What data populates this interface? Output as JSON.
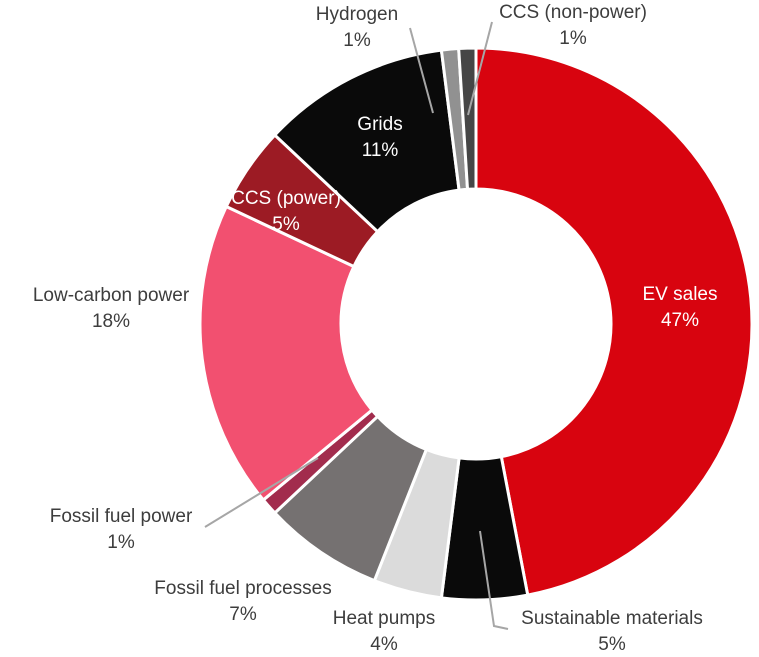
{
  "chart_data": {
    "type": "pie",
    "subtype": "donut",
    "title": "",
    "start_angle_deg": 0,
    "direction": "clockwise",
    "inner_radius_ratio": 0.49,
    "border_color": "#FFFFFF",
    "leader_line_color": "#A6A6A6",
    "background_color": "#FFFFFF",
    "outside_label_color": "#3D3D3D",
    "inside_label_color": "#FFFFFF",
    "slices": [
      {
        "id": "ev-sales",
        "label": "EV sales",
        "value": 47,
        "pct_label": "47%",
        "color": "#D8040F",
        "label_placement": "inside"
      },
      {
        "id": "sustainable-materials",
        "label": "Sustainable materials",
        "value": 5,
        "pct_label": "5%",
        "color": "#0A0A0A",
        "label_placement": "outside"
      },
      {
        "id": "heat-pumps",
        "label": "Heat pumps",
        "value": 4,
        "pct_label": "4%",
        "color": "#DBDBDB",
        "label_placement": "outside"
      },
      {
        "id": "fossil-fuel-processes",
        "label": "Fossil fuel processes",
        "value": 7,
        "pct_label": "7%",
        "color": "#757171",
        "label_placement": "outside"
      },
      {
        "id": "fossil-fuel-power",
        "label": "Fossil fuel power",
        "value": 1,
        "pct_label": "1%",
        "color": "#A22C4D",
        "label_placement": "outside"
      },
      {
        "id": "low-carbon-power",
        "label": "Low-carbon power",
        "value": 18,
        "pct_label": "18%",
        "color": "#F25070",
        "label_placement": "outside"
      },
      {
        "id": "ccs-power",
        "label": "CCS (power)",
        "value": 5,
        "pct_label": "5%",
        "color": "#9C1B24",
        "label_placement": "inside"
      },
      {
        "id": "grids",
        "label": "Grids",
        "value": 11,
        "pct_label": "11%",
        "color": "#0A0A0A",
        "label_placement": "inside"
      },
      {
        "id": "hydrogen",
        "label": "Hydrogen",
        "value": 1,
        "pct_label": "1%",
        "color": "#919191",
        "label_placement": "outside"
      },
      {
        "id": "ccs-non-power",
        "label": "CCS (non-power)",
        "value": 1,
        "pct_label": "1%",
        "color": "#464646",
        "label_placement": "outside"
      }
    ]
  }
}
